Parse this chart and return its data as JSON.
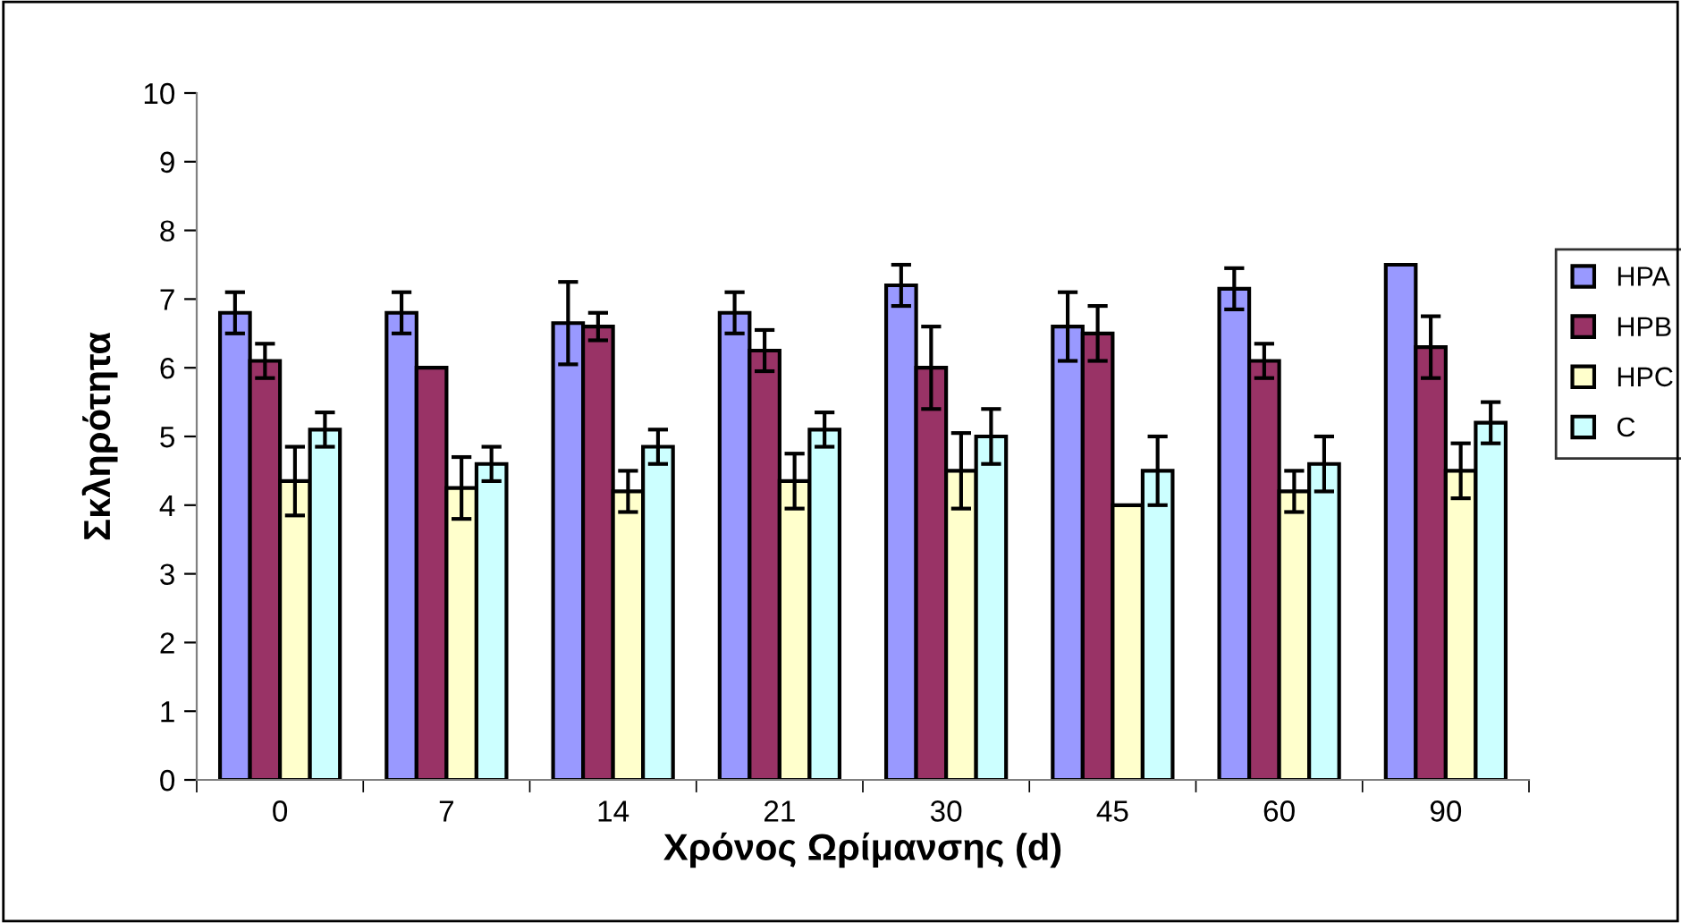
{
  "chart_data": {
    "type": "bar",
    "xlabel": "Χρόνος Ωρίμανσης (d)",
    "ylabel": "Σκληρότητα",
    "categories": [
      "0",
      "7",
      "14",
      "21",
      "30",
      "45",
      "60",
      "90"
    ],
    "series": [
      {
        "name": "HPA",
        "color": "#9999ff",
        "values": [
          6.8,
          6.8,
          6.65,
          6.8,
          7.2,
          6.6,
          7.15,
          7.5
        ],
        "errors": [
          0.3,
          0.3,
          0.6,
          0.3,
          0.3,
          0.5,
          0.3,
          null
        ]
      },
      {
        "name": "HPB",
        "color": "#993366",
        "values": [
          6.1,
          6.0,
          6.6,
          6.25,
          6.0,
          6.5,
          6.1,
          6.3
        ],
        "errors": [
          0.25,
          null,
          0.2,
          0.3,
          0.6,
          0.4,
          0.25,
          0.45
        ]
      },
      {
        "name": "HPC",
        "color": "#ffffcc",
        "values": [
          4.35,
          4.25,
          4.2,
          4.35,
          4.5,
          4.0,
          4.2,
          4.5
        ],
        "errors": [
          0.5,
          0.45,
          0.3,
          0.4,
          0.55,
          null,
          0.3,
          0.4
        ]
      },
      {
        "name": "C",
        "color": "#ccffff",
        "values": [
          5.1,
          4.6,
          4.85,
          5.1,
          5.0,
          4.5,
          4.6,
          5.2
        ],
        "errors": [
          0.25,
          0.25,
          0.25,
          0.25,
          0.4,
          0.5,
          0.4,
          0.3
        ]
      }
    ],
    "ylim": [
      0,
      10
    ],
    "yticks": [
      0,
      1,
      2,
      3,
      4,
      5,
      6,
      7,
      8,
      9,
      10
    ],
    "legend": "right"
  }
}
